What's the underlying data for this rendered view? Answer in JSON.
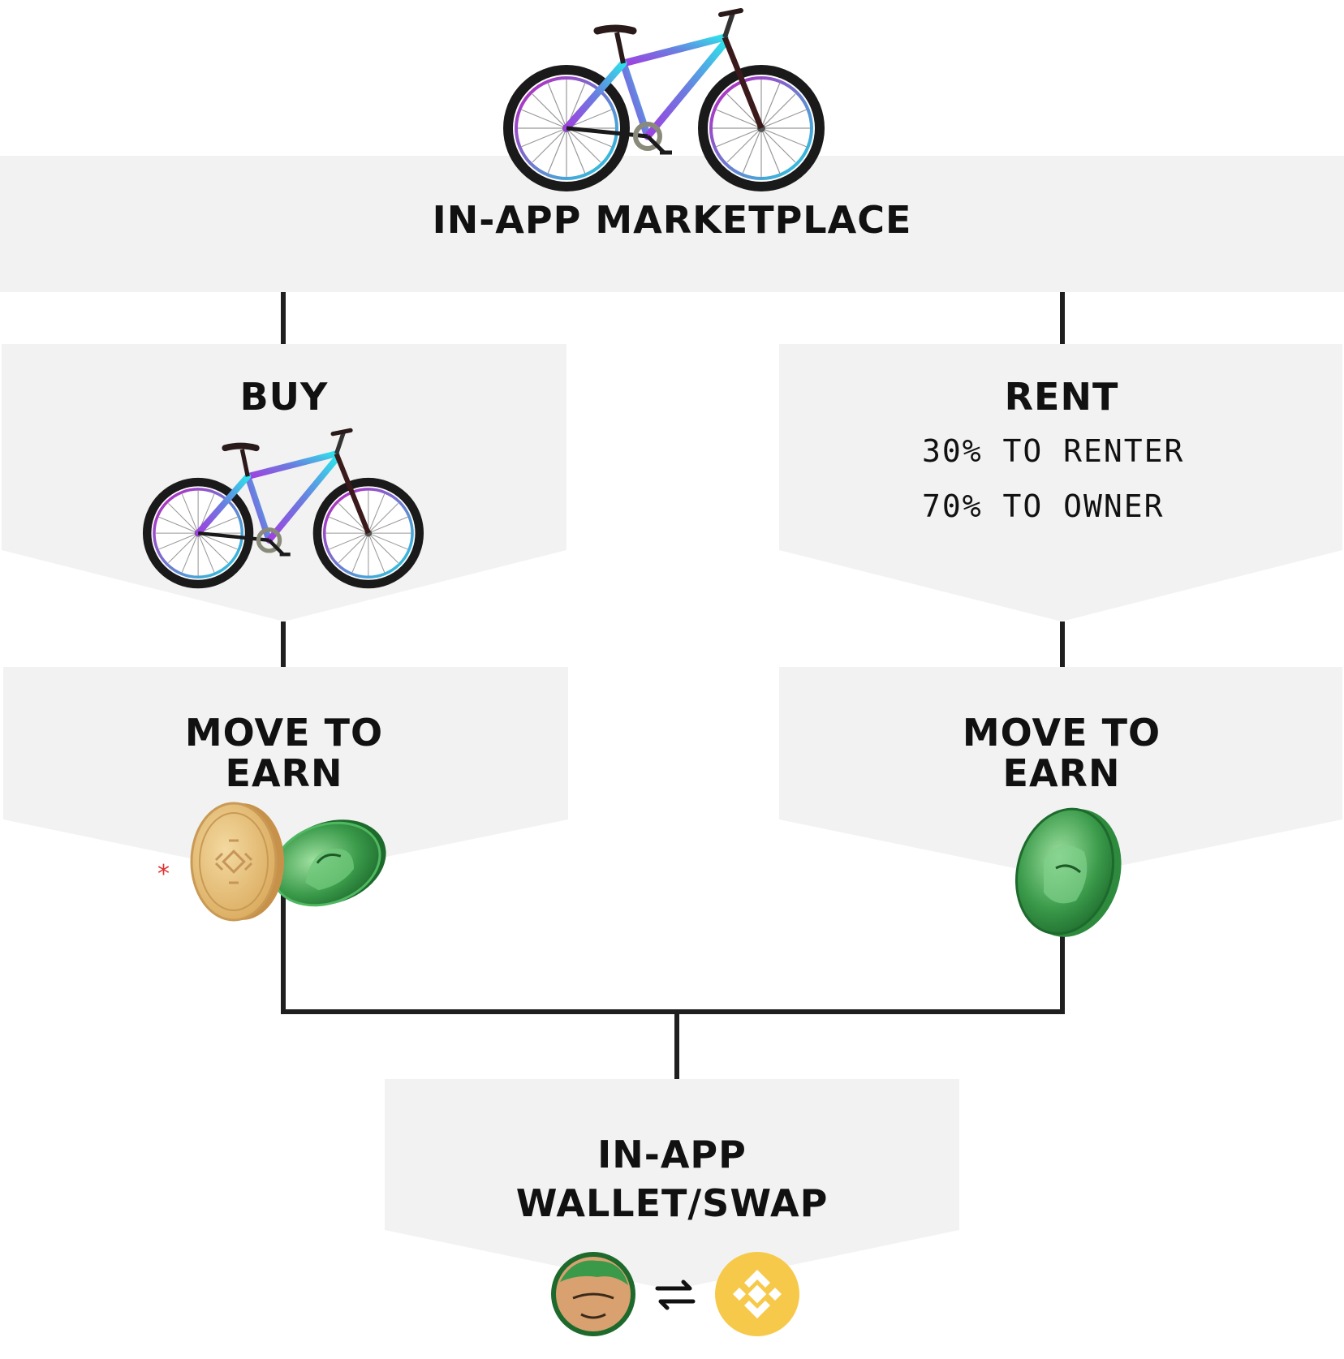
{
  "marketplace": {
    "title": "IN-APP MARKETPLACE"
  },
  "buy": {
    "title": "BUY"
  },
  "rent": {
    "title": "RENT",
    "line1": "30% TO RENTER",
    "line2": "70% TO OWNER"
  },
  "earn_left": {
    "line1": "MOVE TO",
    "line2": "EARN",
    "footnote_mark": "*"
  },
  "earn_right": {
    "line1": "MOVE TO",
    "line2": "EARN"
  },
  "wallet": {
    "line1": "IN-APP",
    "line2": "WALLET/SWAP"
  },
  "colors": {
    "panel": "#f2f2f2",
    "connector": "#1f1f1f",
    "bike_frame_start": "#8a5cd6",
    "bike_frame_end": "#2fd6e8",
    "green_coin": "#2e8b3e",
    "gold_coin": "#e8c06a",
    "binance_yellow": "#f7c94a",
    "asterisk": "#e03030"
  },
  "icons": [
    "bicycle-icon",
    "gold-coin-icon",
    "green-coin-icon",
    "swap-arrows-icon",
    "binance-coin-icon"
  ]
}
